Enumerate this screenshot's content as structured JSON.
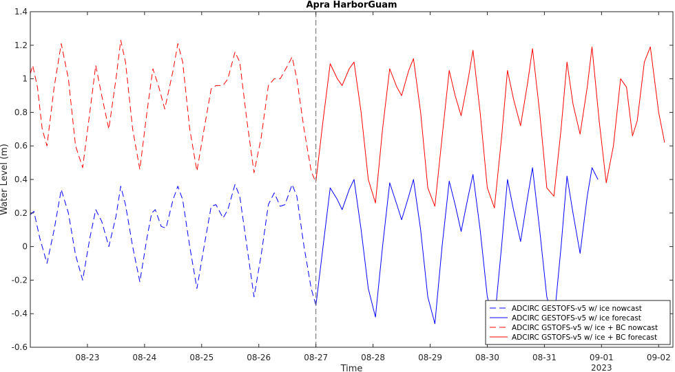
{
  "chart_data": {
    "type": "line",
    "title": "Apra HarborGuam",
    "xlabel": "Time",
    "ylabel": "Water Level (m)",
    "xlim": [
      "2023-08-22T00:00",
      "2023-09-02T06:00"
    ],
    "ylim": [
      -0.6,
      1.4
    ],
    "yticks": [
      -0.6,
      -0.4,
      -0.2,
      0,
      0.2,
      0.4,
      0.6,
      0.8,
      1,
      1.2,
      1.4
    ],
    "ytick_labels": [
      "-0.6",
      "-0.4",
      "-0.2",
      "0",
      "0.2",
      "0.4",
      "0.6",
      "0.8",
      "1",
      "1.2",
      "1.4"
    ],
    "xticks": [
      "2023-08-23",
      "2023-08-24",
      "2023-08-25",
      "2023-08-26",
      "2023-08-27",
      "2023-08-28",
      "2023-08-29",
      "2023-08-30",
      "2023-08-31",
      "2023-09-01",
      "2023-09-02"
    ],
    "xtick_labels": [
      "08-23",
      "08-24",
      "08-25",
      "08-26",
      "08-27",
      "08-28",
      "08-29",
      "08-30",
      "08-31",
      "09-01",
      "09-02"
    ],
    "xaxis_secondary_label": "2023",
    "nowcast_divider": "2023-08-27T00:00",
    "grid": false,
    "legend_position": "bottom-right",
    "series": [
      {
        "name": "ADCIRC GESTOFS-v5 w/ ice nowcast",
        "color": "#0000ff",
        "dash": "dashed",
        "points": [
          [
            "2023-08-22T00:00",
            0.19
          ],
          [
            "2023-08-22T01:30",
            0.21
          ],
          [
            "2023-08-22T04:00",
            0.05
          ],
          [
            "2023-08-22T07:00",
            -0.1
          ],
          [
            "2023-08-22T10:00",
            0.1
          ],
          [
            "2023-08-22T13:00",
            0.34
          ],
          [
            "2023-08-22T16:00",
            0.2
          ],
          [
            "2023-08-22T19:00",
            -0.05
          ],
          [
            "2023-08-22T22:00",
            -0.2
          ],
          [
            "2023-08-23T01:00",
            0.05
          ],
          [
            "2023-08-23T03:30",
            0.22
          ],
          [
            "2023-08-23T06:00",
            0.15
          ],
          [
            "2023-08-23T09:00",
            0.0
          ],
          [
            "2023-08-23T12:00",
            0.18
          ],
          [
            "2023-08-23T14:00",
            0.36
          ],
          [
            "2023-08-23T16:00",
            0.25
          ],
          [
            "2023-08-23T19:00",
            0.0
          ],
          [
            "2023-08-23T22:00",
            -0.21
          ],
          [
            "2023-08-24T01:00",
            0.05
          ],
          [
            "2023-08-24T03:00",
            0.2
          ],
          [
            "2023-08-24T04:30",
            0.22
          ],
          [
            "2023-08-24T07:00",
            0.12
          ],
          [
            "2023-08-24T09:00",
            0.11
          ],
          [
            "2023-08-24T12:00",
            0.28
          ],
          [
            "2023-08-24T14:00",
            0.36
          ],
          [
            "2023-08-24T16:00",
            0.28
          ],
          [
            "2023-08-24T19:00",
            0.0
          ],
          [
            "2023-08-24T22:00",
            -0.25
          ],
          [
            "2023-08-25T01:00",
            0.0
          ],
          [
            "2023-08-25T04:00",
            0.24
          ],
          [
            "2023-08-25T06:00",
            0.25
          ],
          [
            "2023-08-25T09:00",
            0.17
          ],
          [
            "2023-08-25T11:00",
            0.22
          ],
          [
            "2023-08-25T14:00",
            0.37
          ],
          [
            "2023-08-25T16:00",
            0.3
          ],
          [
            "2023-08-25T19:00",
            0.0
          ],
          [
            "2023-08-25T22:00",
            -0.3
          ],
          [
            "2023-08-26T01:00",
            -0.05
          ],
          [
            "2023-08-26T04:00",
            0.25
          ],
          [
            "2023-08-26T06:30",
            0.32
          ],
          [
            "2023-08-26T09:00",
            0.24
          ],
          [
            "2023-08-26T11:00",
            0.25
          ],
          [
            "2023-08-26T14:00",
            0.37
          ],
          [
            "2023-08-26T16:00",
            0.3
          ],
          [
            "2023-08-26T19:00",
            0.0
          ],
          [
            "2023-08-26T22:00",
            -0.25
          ],
          [
            "2023-08-27T00:00",
            -0.35
          ]
        ]
      },
      {
        "name": "ADCIRC GESTOFS-v5 w/ ice forecast",
        "color": "#0000ff",
        "dash": "solid",
        "points": [
          [
            "2023-08-27T00:00",
            -0.35
          ],
          [
            "2023-08-27T03:00",
            0.0
          ],
          [
            "2023-08-27T06:00",
            0.35
          ],
          [
            "2023-08-27T09:00",
            0.28
          ],
          [
            "2023-08-27T11:00",
            0.22
          ],
          [
            "2023-08-27T14:00",
            0.34
          ],
          [
            "2023-08-27T16:00",
            0.4
          ],
          [
            "2023-08-27T19:00",
            0.1
          ],
          [
            "2023-08-27T22:00",
            -0.25
          ],
          [
            "2023-08-28T01:00",
            -0.42
          ],
          [
            "2023-08-28T04:00",
            0.0
          ],
          [
            "2023-08-28T07:00",
            0.38
          ],
          [
            "2023-08-28T10:00",
            0.25
          ],
          [
            "2023-08-28T12:00",
            0.16
          ],
          [
            "2023-08-28T15:00",
            0.3
          ],
          [
            "2023-08-28T17:00",
            0.4
          ],
          [
            "2023-08-28T20:00",
            0.1
          ],
          [
            "2023-08-28T23:00",
            -0.3
          ],
          [
            "2023-08-29T02:00",
            -0.46
          ],
          [
            "2023-08-29T05:00",
            0.0
          ],
          [
            "2023-08-29T08:00",
            0.39
          ],
          [
            "2023-08-29T10:30",
            0.25
          ],
          [
            "2023-08-29T13:00",
            0.09
          ],
          [
            "2023-08-29T16:00",
            0.3
          ],
          [
            "2023-08-29T18:00",
            0.43
          ],
          [
            "2023-08-29T21:00",
            0.1
          ],
          [
            "2023-08-30T00:00",
            -0.3
          ],
          [
            "2023-08-30T03:00",
            -0.45
          ],
          [
            "2023-08-30T06:00",
            0.0
          ],
          [
            "2023-08-30T08:30",
            0.4
          ],
          [
            "2023-08-30T11:00",
            0.22
          ],
          [
            "2023-08-30T14:00",
            0.03
          ],
          [
            "2023-08-30T17:00",
            0.3
          ],
          [
            "2023-08-30T19:00",
            0.47
          ],
          [
            "2023-08-30T22:00",
            0.1
          ],
          [
            "2023-08-31T01:00",
            -0.3
          ],
          [
            "2023-08-31T04:00",
            -0.45
          ],
          [
            "2023-08-31T07:00",
            0.0
          ],
          [
            "2023-08-31T09:30",
            0.42
          ],
          [
            "2023-08-31T12:00",
            0.2
          ],
          [
            "2023-08-31T15:00",
            -0.04
          ],
          [
            "2023-08-31T18:00",
            0.3
          ],
          [
            "2023-08-31T20:00",
            0.47
          ],
          [
            "2023-08-31T22:30",
            0.4
          ]
        ]
      },
      {
        "name": "ADCIRC GSTOFS-v5 w/ ice + BC nowcast",
        "color": "#ff0000",
        "dash": "dashed",
        "points": [
          [
            "2023-08-22T00:00",
            1.03
          ],
          [
            "2023-08-22T01:00",
            1.08
          ],
          [
            "2023-08-22T03:00",
            0.95
          ],
          [
            "2023-08-22T05:00",
            0.7
          ],
          [
            "2023-08-22T07:00",
            0.6
          ],
          [
            "2023-08-22T10:00",
            0.95
          ],
          [
            "2023-08-22T13:00",
            1.21
          ],
          [
            "2023-08-22T16:00",
            1.0
          ],
          [
            "2023-08-22T19:00",
            0.6
          ],
          [
            "2023-08-22T22:00",
            0.47
          ],
          [
            "2023-08-23T01:00",
            0.8
          ],
          [
            "2023-08-23T03:30",
            1.08
          ],
          [
            "2023-08-23T06:00",
            0.9
          ],
          [
            "2023-08-23T09:00",
            0.7
          ],
          [
            "2023-08-23T12:00",
            1.0
          ],
          [
            "2023-08-23T14:00",
            1.23
          ],
          [
            "2023-08-23T16:00",
            1.1
          ],
          [
            "2023-08-23T19:00",
            0.7
          ],
          [
            "2023-08-23T22:00",
            0.46
          ],
          [
            "2023-08-24T01:00",
            0.8
          ],
          [
            "2023-08-24T03:30",
            1.06
          ],
          [
            "2023-08-24T06:00",
            0.95
          ],
          [
            "2023-08-24T08:30",
            0.82
          ],
          [
            "2023-08-24T12:00",
            1.05
          ],
          [
            "2023-08-24T14:00",
            1.21
          ],
          [
            "2023-08-24T16:00",
            1.1
          ],
          [
            "2023-08-24T19:00",
            0.7
          ],
          [
            "2023-08-24T22:00",
            0.45
          ],
          [
            "2023-08-25T01:00",
            0.7
          ],
          [
            "2023-08-25T04:00",
            0.94
          ],
          [
            "2023-08-25T06:00",
            0.96
          ],
          [
            "2023-08-25T09:00",
            0.96
          ],
          [
            "2023-08-25T11:00",
            1.0
          ],
          [
            "2023-08-25T14:00",
            1.16
          ],
          [
            "2023-08-25T16:00",
            1.1
          ],
          [
            "2023-08-25T19:00",
            0.75
          ],
          [
            "2023-08-25T22:00",
            0.44
          ],
          [
            "2023-08-26T01:00",
            0.65
          ],
          [
            "2023-08-26T04:00",
            0.96
          ],
          [
            "2023-08-26T06:30",
            1.0
          ],
          [
            "2023-08-26T09:00",
            1.0
          ],
          [
            "2023-08-26T11:00",
            1.05
          ],
          [
            "2023-08-26T14:00",
            1.13
          ],
          [
            "2023-08-26T16:00",
            1.0
          ],
          [
            "2023-08-26T19:00",
            0.7
          ],
          [
            "2023-08-26T22:00",
            0.45
          ],
          [
            "2023-08-27T00:00",
            0.38
          ]
        ]
      },
      {
        "name": "ADCIRC GSTOFS-v5 w/ ice + BC forecast",
        "color": "#ff0000",
        "dash": "solid",
        "points": [
          [
            "2023-08-27T00:00",
            0.39
          ],
          [
            "2023-08-27T03:00",
            0.75
          ],
          [
            "2023-08-27T06:00",
            1.09
          ],
          [
            "2023-08-27T09:00",
            1.0
          ],
          [
            "2023-08-27T11:00",
            0.96
          ],
          [
            "2023-08-27T14:00",
            1.06
          ],
          [
            "2023-08-27T16:00",
            1.1
          ],
          [
            "2023-08-27T19:00",
            0.8
          ],
          [
            "2023-08-27T22:00",
            0.4
          ],
          [
            "2023-08-28T01:00",
            0.26
          ],
          [
            "2023-08-28T04:00",
            0.7
          ],
          [
            "2023-08-28T07:00",
            1.06
          ],
          [
            "2023-08-28T10:00",
            0.95
          ],
          [
            "2023-08-28T12:00",
            0.9
          ],
          [
            "2023-08-28T15:00",
            1.05
          ],
          [
            "2023-08-28T17:00",
            1.12
          ],
          [
            "2023-08-28T20:00",
            0.8
          ],
          [
            "2023-08-28T23:00",
            0.35
          ],
          [
            "2023-08-29T02:00",
            0.24
          ],
          [
            "2023-08-29T05:00",
            0.65
          ],
          [
            "2023-08-29T08:00",
            1.05
          ],
          [
            "2023-08-29T10:30",
            0.9
          ],
          [
            "2023-08-29T13:00",
            0.78
          ],
          [
            "2023-08-29T16:00",
            1.0
          ],
          [
            "2023-08-29T18:00",
            1.17
          ],
          [
            "2023-08-29T21:00",
            0.8
          ],
          [
            "2023-08-30T00:00",
            0.35
          ],
          [
            "2023-08-30T03:00",
            0.23
          ],
          [
            "2023-08-30T06:00",
            0.65
          ],
          [
            "2023-08-30T08:30",
            1.05
          ],
          [
            "2023-08-30T11:00",
            0.88
          ],
          [
            "2023-08-30T14:00",
            0.72
          ],
          [
            "2023-08-30T17:00",
            0.98
          ],
          [
            "2023-08-30T19:00",
            1.18
          ],
          [
            "2023-08-30T22:00",
            0.8
          ],
          [
            "2023-08-31T01:00",
            0.35
          ],
          [
            "2023-08-31T04:00",
            0.3
          ],
          [
            "2023-08-31T07:00",
            0.7
          ],
          [
            "2023-08-31T09:30",
            1.1
          ],
          [
            "2023-08-31T12:00",
            0.85
          ],
          [
            "2023-08-31T15:00",
            0.67
          ],
          [
            "2023-08-31T18:00",
            0.95
          ],
          [
            "2023-08-31T20:00",
            1.19
          ],
          [
            "2023-08-31T23:00",
            0.75
          ],
          [
            "2023-09-01T02:00",
            0.38
          ],
          [
            "2023-09-01T05:00",
            0.6
          ],
          [
            "2023-09-01T08:00",
            1.0
          ],
          [
            "2023-09-01T10:30",
            0.95
          ],
          [
            "2023-09-01T13:00",
            0.66
          ],
          [
            "2023-09-01T15:00",
            0.75
          ],
          [
            "2023-09-01T18:00",
            1.1
          ],
          [
            "2023-09-01T20:30",
            1.19
          ],
          [
            "2023-09-02T00:00",
            0.8
          ],
          [
            "2023-09-02T02:30",
            0.62
          ]
        ]
      }
    ]
  }
}
